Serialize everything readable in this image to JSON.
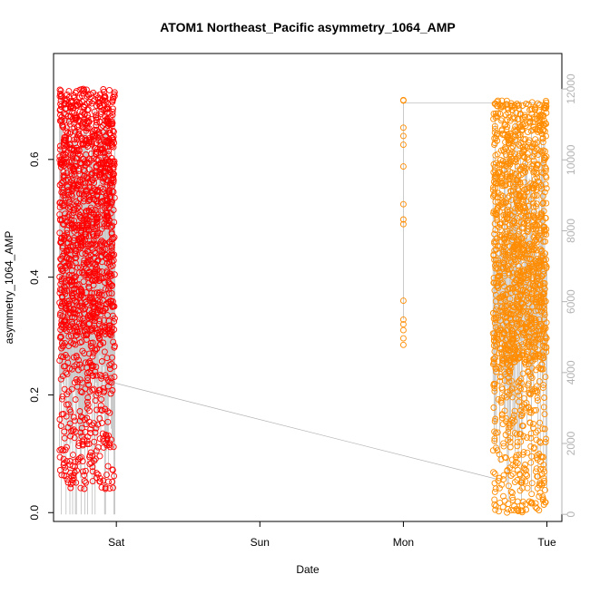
{
  "chart_data": {
    "type": "scatter",
    "title": "ATOM1 Northeast_Pacific asymmetry_1064_AMP",
    "xlabel": "Date",
    "ylabel": "asymmetry_1064_AMP",
    "x_axis": {
      "kind": "date",
      "range": [
        "Fri 13:30",
        "Tue 02:30"
      ],
      "ticks": [
        {
          "label": "Sat",
          "value": "Sat 00:00"
        },
        {
          "label": "Sun",
          "value": "Sun 00:00"
        },
        {
          "label": "Mon",
          "value": "Mon 00:00"
        },
        {
          "label": "Tue",
          "value": "Tue 00:00"
        }
      ]
    },
    "y_left": {
      "range": [
        -0.015,
        0.78
      ],
      "ticks": [
        {
          "label": "0.0",
          "value": 0.0
        },
        {
          "label": "0.2",
          "value": 0.2
        },
        {
          "label": "0.4",
          "value": 0.4
        },
        {
          "label": "0.6",
          "value": 0.6
        }
      ]
    },
    "y_right": {
      "label": "",
      "color": "#b3b3b3",
      "range": [
        -200,
        13000
      ],
      "ticks": [
        {
          "label": "0",
          "value": 0
        },
        {
          "label": "2000",
          "value": 2000
        },
        {
          "label": "4000",
          "value": 4000
        },
        {
          "label": "6000",
          "value": 6000
        },
        {
          "label": "8000",
          "value": 8000
        },
        {
          "label": "10000",
          "value": 10000
        },
        {
          "label": "12000",
          "value": 12000
        }
      ]
    },
    "grid": false,
    "legend": "none",
    "series": [
      {
        "color": "#ff0000",
        "marker": "open-circle",
        "x_range": [
          "Fri 14:30",
          "Fri 23:45"
        ],
        "y_range": [
          0.045,
          0.74
        ],
        "density_note_values": {
          "dense_band": [
            0.3,
            0.72
          ],
          "sparse_tail": [
            0.04,
            0.3
          ]
        }
      },
      {
        "color": "#ff8c00",
        "marker": "open-circle",
        "x_range": [
          "Mon 15:00",
          "Mon 23:59"
        ],
        "y_range": [
          0.005,
          0.72
        ],
        "density_note_values": {
          "dense_band": [
            0.25,
            0.7
          ],
          "sparse_tail": [
            0.0,
            0.25
          ]
        }
      },
      {
        "color": "#ff8c00",
        "marker": "open-circle",
        "x_values": [
          "Mon 00:00"
        ],
        "y_values": [
          0.7,
          0.701,
          0.654,
          0.64,
          0.625,
          0.588,
          0.524,
          0.498,
          0.49,
          0.36,
          0.328,
          0.32,
          0.31,
          0.296,
          0.285
        ]
      }
    ],
    "secondary_line": {
      "color": "#b3b3b3",
      "axis": "right",
      "segments_summary": [
        {
          "x": "Fri 23:50",
          "y": 3700
        },
        {
          "x": "Mon 15:30",
          "y": 1000
        },
        {
          "x": "Mon 23:59",
          "y": 11600
        },
        {
          "x": "Mon 00:00",
          "y": 11600
        },
        {
          "x": "Mon 00:00",
          "y": 5500
        }
      ]
    }
  }
}
